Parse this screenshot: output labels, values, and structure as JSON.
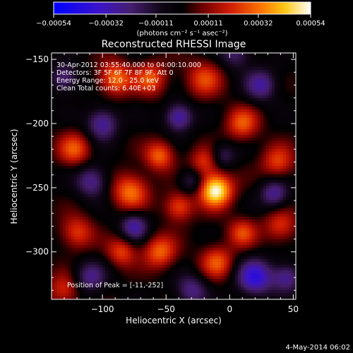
{
  "chart_data": {
    "type": "heatmap",
    "title": "Reconstructed RHESSI Image",
    "annotations": [
      "30-Apr-2012 03:55:40.000 to 04:00:10.000",
      "Detectors: 3F 5F 6F 7F 8F 9F, Att 0",
      "Energy Range: 12.0 - 25.0 keV",
      "Clean    Total counts: 6.40E+03"
    ],
    "peak_label": "Position of Peak = [-11,-252]",
    "peak": {
      "x": -11,
      "y": -252
    },
    "xlabel": "Heliocentric X (arcsec)",
    "ylabel": "Heliocentric Y (arcsec)",
    "xlim": [
      -140,
      52
    ],
    "ylim": [
      -337,
      -145
    ],
    "x_ticks": [
      -100,
      -50,
      0,
      50
    ],
    "x_tick_labels": [
      "−100",
      "−50",
      "0",
      "50"
    ],
    "y_ticks": [
      -150,
      -200,
      -250,
      -300
    ],
    "y_tick_labels": [
      "−150",
      "−200",
      "−250",
      "−300"
    ],
    "colorbar": {
      "range": [
        -0.00054,
        0.00054
      ],
      "ticks": [
        -0.00054,
        -0.00032,
        -0.00011,
        0.00011,
        0.00032,
        0.00054
      ],
      "tick_labels": [
        "−0.00054",
        "−0.00032",
        "−0.00011",
        "0.00011",
        "0.00032",
        "0.00054"
      ],
      "unit_label": "(photons cm⁻² s⁻¹ asec⁻²)"
    },
    "timestamp": "4-May-2014 06:02",
    "sources": [
      {
        "x": -11,
        "y": -252,
        "amp": 1.0,
        "sigma": 9
      },
      {
        "x": -78,
        "y": -253,
        "amp": 0.6,
        "sigma": 10
      },
      {
        "x": -55,
        "y": -225,
        "amp": 0.55,
        "sigma": 8
      },
      {
        "x": -40,
        "y": -265,
        "amp": 0.5,
        "sigma": 8
      },
      {
        "x": -90,
        "y": -165,
        "amp": 0.6,
        "sigma": 9
      },
      {
        "x": -62,
        "y": -165,
        "amp": 0.5,
        "sigma": 9
      },
      {
        "x": -20,
        "y": -165,
        "amp": 0.45,
        "sigma": 10
      },
      {
        "x": 10,
        "y": -200,
        "amp": 0.5,
        "sigma": 9
      },
      {
        "x": 38,
        "y": -230,
        "amp": 0.45,
        "sigma": 9
      },
      {
        "x": -122,
        "y": -220,
        "amp": 0.5,
        "sigma": 9
      },
      {
        "x": -120,
        "y": -285,
        "amp": 0.45,
        "sigma": 9
      },
      {
        "x": -55,
        "y": -300,
        "amp": 0.55,
        "sigma": 9
      },
      {
        "x": -85,
        "y": -300,
        "amp": 0.45,
        "sigma": 8
      },
      {
        "x": -10,
        "y": -308,
        "amp": 0.5,
        "sigma": 9
      },
      {
        "x": 10,
        "y": -285,
        "amp": 0.45,
        "sigma": 8
      },
      {
        "x": 40,
        "y": -280,
        "amp": 0.4,
        "sigma": 9
      },
      {
        "x": -130,
        "y": -330,
        "amp": 0.4,
        "sigma": 9
      },
      {
        "x": -20,
        "y": -230,
        "amp": 0.4,
        "sigma": 8
      },
      {
        "x": -100,
        "y": -200,
        "amp": -0.55,
        "sigma": 9
      },
      {
        "x": -108,
        "y": -245,
        "amp": -0.5,
        "sigma": 9
      },
      {
        "x": -75,
        "y": -280,
        "amp": -0.55,
        "sigma": 8
      },
      {
        "x": -40,
        "y": -195,
        "amp": -0.6,
        "sigma": 8
      },
      {
        "x": -30,
        "y": -245,
        "amp": -0.35,
        "sigma": 7
      },
      {
        "x": 25,
        "y": -170,
        "amp": -0.5,
        "sigma": 9
      },
      {
        "x": 35,
        "y": -255,
        "amp": -0.5,
        "sigma": 8
      },
      {
        "x": 20,
        "y": -320,
        "amp": -0.7,
        "sigma": 10
      },
      {
        "x": 45,
        "y": -320,
        "amp": -0.5,
        "sigma": 8
      },
      {
        "x": -30,
        "y": -330,
        "amp": -0.45,
        "sigma": 9
      },
      {
        "x": -110,
        "y": -320,
        "amp": -0.45,
        "sigma": 9
      },
      {
        "x": -130,
        "y": -165,
        "amp": -0.45,
        "sigma": 8
      },
      {
        "x": 5,
        "y": -145,
        "amp": -0.4,
        "sigma": 9
      },
      {
        "x": -5,
        "y": -225,
        "amp": -0.35,
        "sigma": 7
      }
    ]
  }
}
